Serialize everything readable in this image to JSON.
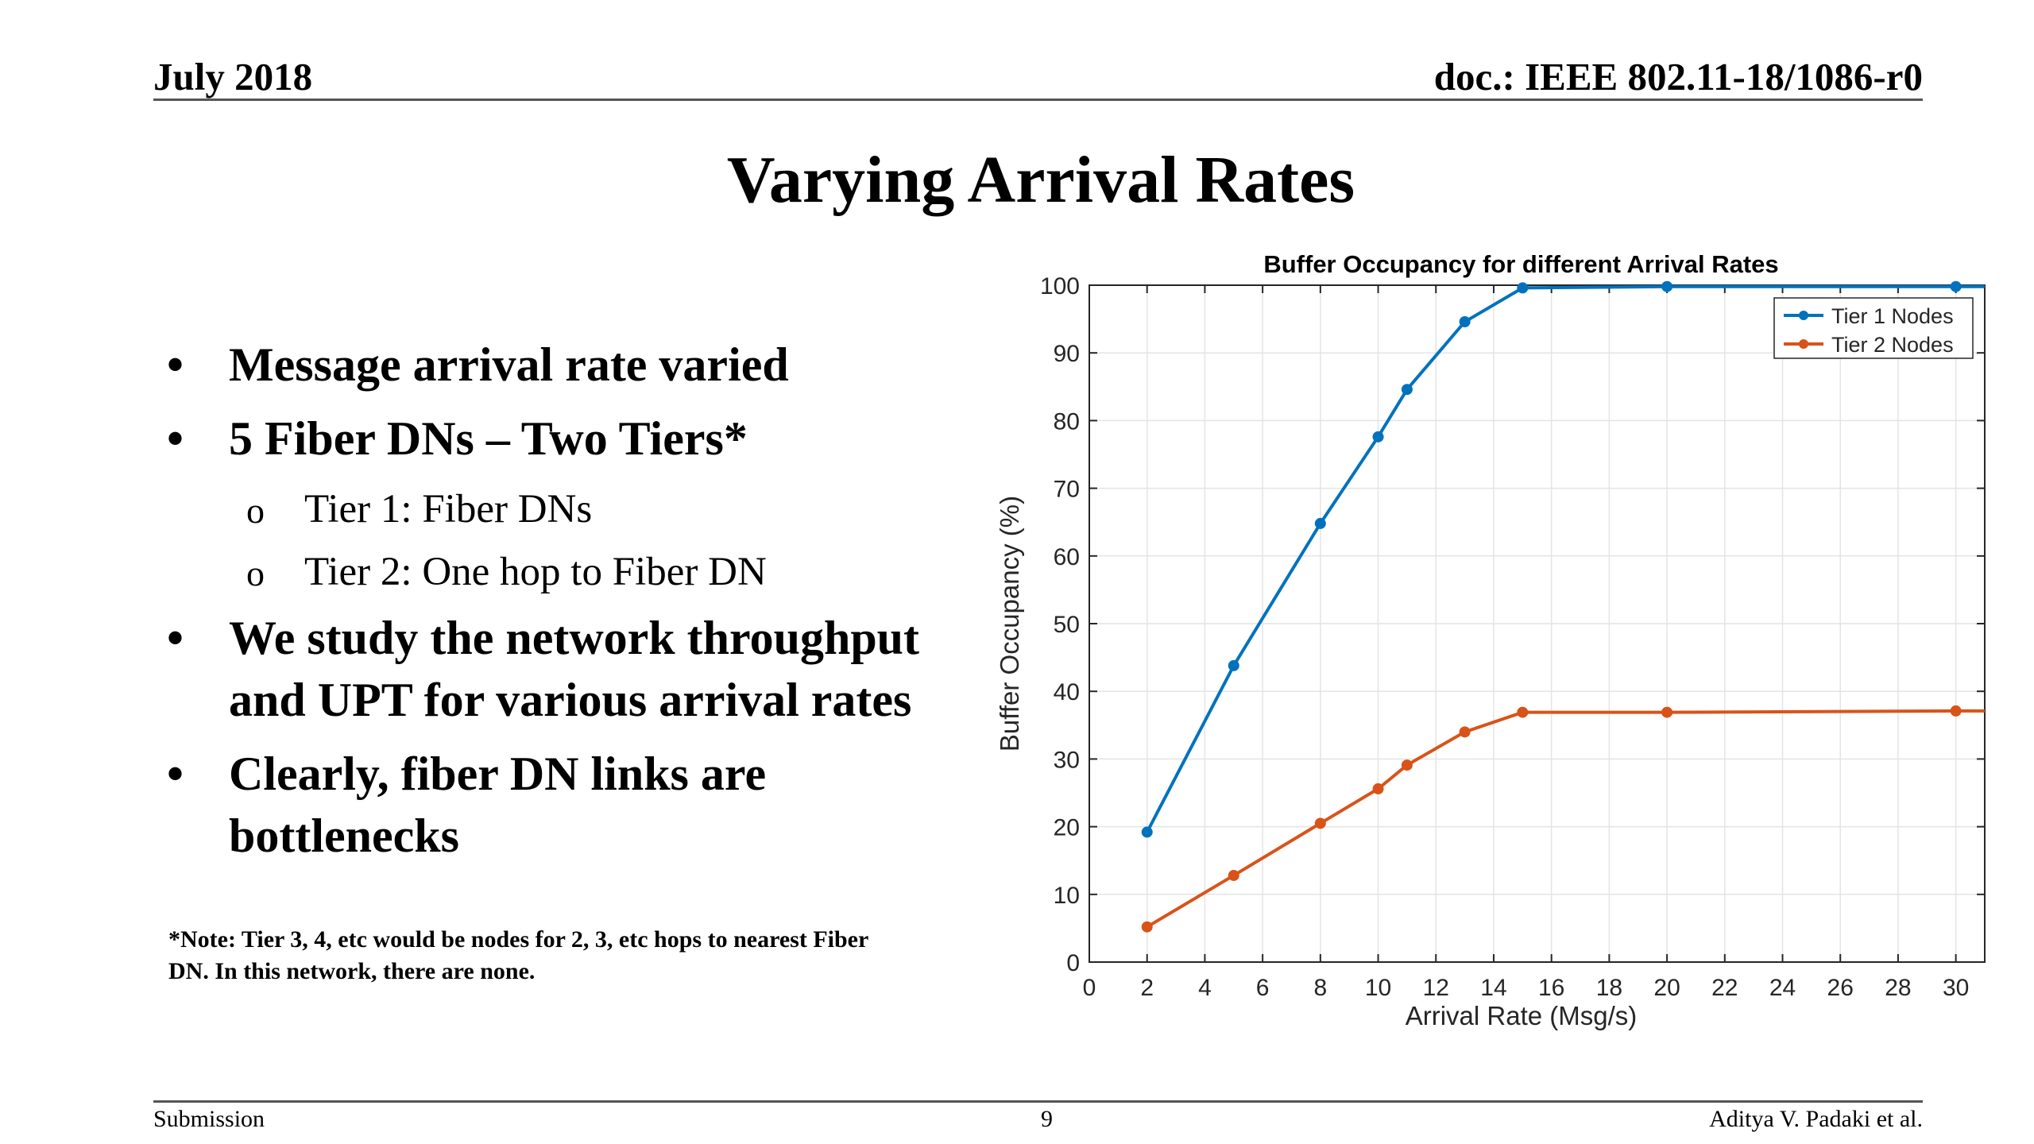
{
  "header": {
    "date": "July  2018",
    "doc": "doc.: IEEE 802.11-18/1086-r0"
  },
  "slide_title": "Varying Arrival Rates",
  "bullets": {
    "item1": "Message arrival rate varied",
    "item2": "5 Fiber DNs – Two Tiers*",
    "sub1": "Tier 1: Fiber DNs",
    "sub2": "Tier 2: One hop to Fiber DN",
    "item3_line1": "We study the network throughput",
    "item3_line2": "and UPT for various arrival rates",
    "item4_line1": "Clearly, fiber DN links are",
    "item4_line2": "bottlenecks",
    "bullet_glyph": "•",
    "sub_glyph": "o"
  },
  "note": {
    "line1": "*Note: Tier 3, 4, etc would be nodes for 2, 3, etc hops to nearest Fiber",
    "line2": "DN. In this network, there are none."
  },
  "footer": {
    "left": "Submission",
    "page": "9",
    "right": "Aditya V. Padaki et al."
  },
  "chart_data": {
    "type": "line",
    "title": "Buffer Occupancy for different Arrival Rates",
    "xlabel": "Arrival Rate (Msg/s)",
    "ylabel": "Buffer Occupancy (%)",
    "xlim": [
      0,
      31
    ],
    "ylim": [
      0,
      100
    ],
    "xticks": [
      0,
      2,
      4,
      6,
      8,
      10,
      12,
      14,
      16,
      18,
      20,
      22,
      24,
      26,
      28,
      30
    ],
    "yticks": [
      0,
      10,
      20,
      30,
      40,
      50,
      60,
      70,
      80,
      90,
      100
    ],
    "grid": true,
    "legend_position": "top-right",
    "series": [
      {
        "name": "Tier 1 Nodes",
        "color": "#0072BD",
        "x": [
          2,
          5,
          8,
          10,
          11,
          13,
          15,
          20,
          30,
          31
        ],
        "y": [
          19.2,
          43.8,
          64.8,
          77.6,
          84.6,
          94.6,
          99.6,
          99.8,
          99.8,
          99.8
        ],
        "markers": [
          true,
          true,
          true,
          true,
          true,
          true,
          true,
          true,
          true,
          false
        ]
      },
      {
        "name": "Tier 2 Nodes",
        "color": "#D95319",
        "x": [
          2,
          5,
          8,
          10,
          11,
          13,
          15,
          20,
          30,
          31
        ],
        "y": [
          5.2,
          12.8,
          20.5,
          25.6,
          29.1,
          34.0,
          36.9,
          36.9,
          37.1,
          37.1
        ],
        "markers": [
          true,
          true,
          true,
          true,
          true,
          true,
          true,
          true,
          true,
          false
        ]
      }
    ]
  }
}
